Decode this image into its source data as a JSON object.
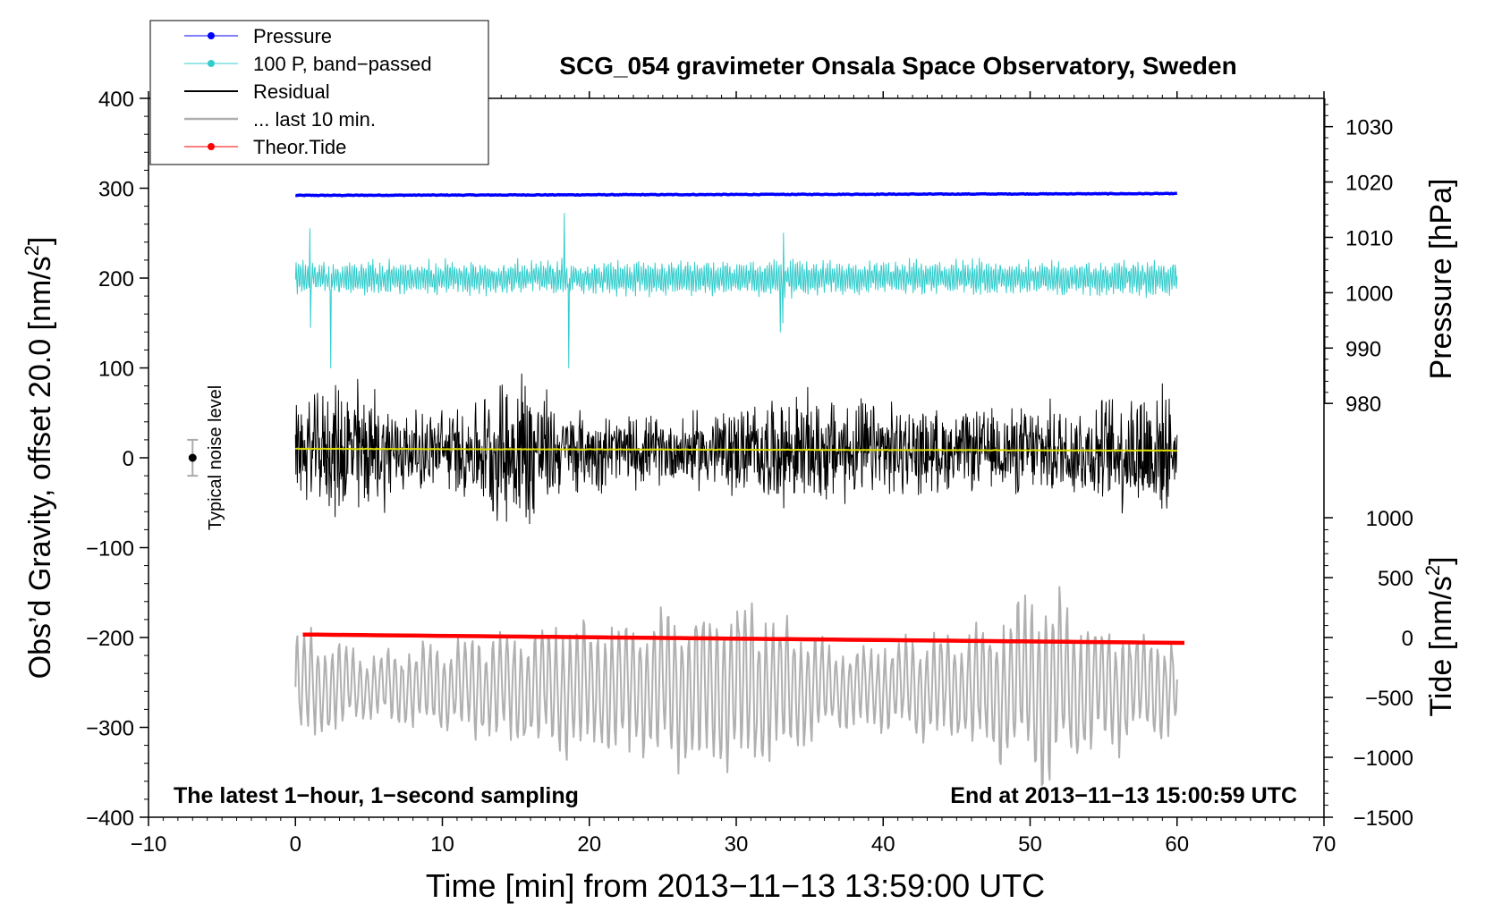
{
  "chart_data": {
    "type": "line",
    "title": "SCG_054 gravimeter Onsala Space Observatory, Sweden",
    "xlabel": "Time [min] from 2013−11−13 13:59:00 UTC",
    "ylabel_main": "Obs’d Gravity, offset 20.0 [nm/s",
    "ylabel_main_sup": "2",
    "ylabel_main_end": "]",
    "ylabel_pressure": "Pressure [hPa]",
    "ylabel_tide": "Tide [nm/s",
    "ylabel_tide_sup": "2",
    "ylabel_tide_end": "]",
    "xlim": [
      -10,
      70
    ],
    "ylim": [
      -400,
      400
    ],
    "xticks": [
      -10,
      0,
      10,
      20,
      30,
      40,
      50,
      60,
      70
    ],
    "xtick_labels": [
      "−10",
      "0",
      "10",
      "20",
      "30",
      "40",
      "50",
      "60",
      "70"
    ],
    "yticks": [
      -400,
      -300,
      -200,
      -100,
      0,
      100,
      200,
      300,
      400
    ],
    "ytick_labels": [
      "−400",
      "−300",
      "−200",
      "−100",
      "0",
      "100",
      "200",
      "300",
      "400"
    ],
    "pressure_axis": {
      "ticks": [
        980,
        990,
        1000,
        1010,
        1020,
        1030
      ],
      "tick_labels": [
        "980",
        "990",
        "1000",
        "1010",
        "1020",
        "1030"
      ],
      "map": {
        "p1": 980,
        "y1": 60.5,
        "p2": 1030,
        "y2": 368.5
      }
    },
    "tide_axis": {
      "ticks": [
        -1500,
        -1000,
        -500,
        0,
        500,
        1000
      ],
      "tick_labels": [
        "−1500",
        "−1000",
        "−500",
        "0",
        "500",
        "1000"
      ],
      "map": {
        "t1": -1500,
        "y1": -400,
        "t2": 1000,
        "y2": -66.7
      }
    },
    "legend_position": "top-left",
    "legend": [
      {
        "label": "Pressure",
        "color": "#0000ff",
        "marker": true
      },
      {
        "label": "100 P, band−passed",
        "color": "#33cccc",
        "marker": true
      },
      {
        "label": "Residual",
        "color": "#000000",
        "marker": false
      },
      {
        "label": "... last 10 min.",
        "color": "#b0b0b0",
        "marker": false
      },
      {
        "label": "Theor.Tide",
        "color": "#ff0000",
        "marker": true
      }
    ],
    "series": [
      {
        "name": "Pressure",
        "color": "#0000ff",
        "kind": "flat",
        "x_range": [
          0,
          60
        ],
        "y_start": 292,
        "y_end": 294,
        "noise": 0.8
      },
      {
        "name": "100 P, band-passed",
        "color": "#33cccc",
        "kind": "oscillation",
        "x_range": [
          0,
          60
        ],
        "center": 200,
        "amplitude": 18,
        "spikes": [
          [
            1,
            55
          ],
          [
            2.4,
            100
          ],
          [
            18.3,
            72
          ],
          [
            18.6,
            100
          ],
          [
            33,
            60
          ],
          [
            33.2,
            50
          ]
        ]
      },
      {
        "name": "Residual",
        "color": "#000000",
        "kind": "noise",
        "x_range": [
          0,
          60
        ],
        "center": 8,
        "amplitude": 60,
        "envelope": [
          [
            0,
            0.9
          ],
          [
            4,
            1.6
          ],
          [
            8,
            0.8
          ],
          [
            12,
            1.0
          ],
          [
            15.5,
            1.9
          ],
          [
            18,
            0.9
          ],
          [
            25,
            0.7
          ],
          [
            35,
            1.2
          ],
          [
            45,
            0.8
          ],
          [
            55,
            1.1
          ],
          [
            58.5,
            1.6
          ],
          [
            60,
            0.8
          ]
        ]
      },
      {
        "name": "Residual mean",
        "color": "#dddd00",
        "kind": "flat",
        "x_range": [
          0,
          60
        ],
        "y_start": 10,
        "y_end": 8,
        "noise": 0.6
      },
      {
        "name": "... last 10 min.",
        "color": "#b0b0b0",
        "kind": "oscillation",
        "x_range": [
          0,
          60
        ],
        "center": -255,
        "amplitude": 45,
        "envelope": [
          [
            0,
            1.5
          ],
          [
            5,
            0.8
          ],
          [
            12,
            1.3
          ],
          [
            16,
            1.6
          ],
          [
            22,
            1.7
          ],
          [
            27,
            2.0
          ],
          [
            31,
            2.2
          ],
          [
            37,
            1.0
          ],
          [
            44,
            1.3
          ],
          [
            50,
            2.2
          ],
          [
            51,
            2.5
          ],
          [
            55,
            1.6
          ],
          [
            60,
            1.3
          ]
        ]
      },
      {
        "name": "Theor.Tide",
        "color": "#ff0000",
        "kind": "linear",
        "x_range": [
          0.5,
          60.5
        ],
        "tide_start": 25,
        "tide_end": -45
      }
    ],
    "noise_marker": {
      "label": "Typical noise level",
      "x": -7,
      "y": 0,
      "err": 20
    },
    "annotations": {
      "left": "The latest 1−hour, 1−second sampling",
      "right": "End at 2013−11−13 15:00:59 UTC"
    }
  }
}
